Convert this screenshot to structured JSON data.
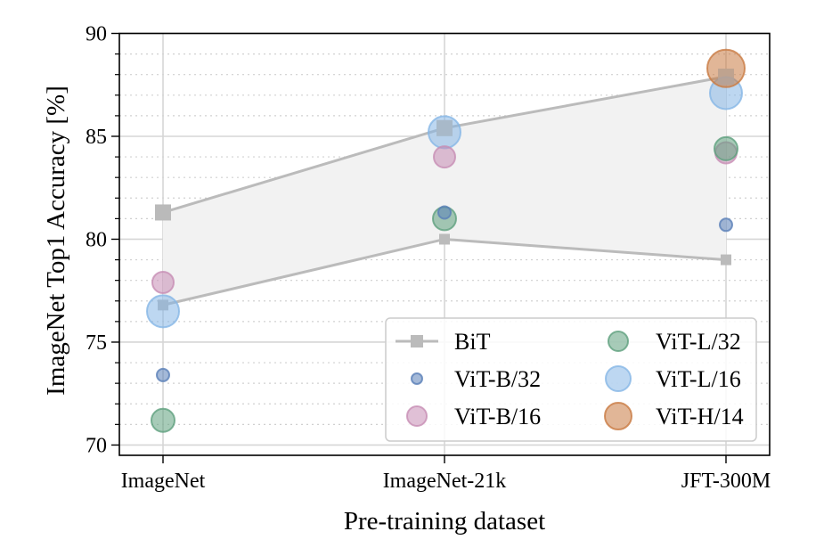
{
  "chart_data": {
    "type": "scatter",
    "title": "",
    "xlabel": "Pre-training dataset",
    "ylabel": "ImageNet Top1 Accuracy [%]",
    "categories": [
      "ImageNet",
      "ImageNet-21k",
      "JFT-300M"
    ],
    "ylim": [
      69.5,
      90
    ],
    "yticks": [
      70,
      75,
      80,
      85,
      90
    ],
    "yminor_step": 1,
    "grid": true,
    "legend": {
      "placement": "lower-right",
      "columns": 2
    },
    "bit_band": {
      "name": "BiT",
      "color": "#bbbbbb",
      "fill_color": "#f2f2f2",
      "upper": [
        81.3,
        85.4,
        87.9
      ],
      "lower": [
        76.8,
        80.0,
        79.0
      ]
    },
    "series": [
      {
        "name": "ViT-B/32",
        "color": "#5a80b8",
        "size_rank": 1,
        "values": [
          73.4,
          81.3,
          80.7
        ]
      },
      {
        "name": "ViT-B/16",
        "color": "#c78db4",
        "size_rank": 2,
        "values": [
          77.9,
          84.0,
          84.2
        ]
      },
      {
        "name": "ViT-L/32",
        "color": "#5fa07e",
        "size_rank": 3,
        "values": [
          71.2,
          81.0,
          84.4
        ]
      },
      {
        "name": "ViT-L/16",
        "color": "#86b6e6",
        "size_rank": 4,
        "values": [
          76.5,
          85.2,
          87.1
        ]
      },
      {
        "name": "ViT-H/14",
        "color": "#c97a42",
        "size_rank": 5,
        "values": [
          null,
          null,
          88.3
        ]
      }
    ],
    "legend_entries": [
      "BiT",
      "ViT-B/32",
      "ViT-B/16",
      "ViT-L/32",
      "ViT-L/16",
      "ViT-H/14"
    ]
  }
}
